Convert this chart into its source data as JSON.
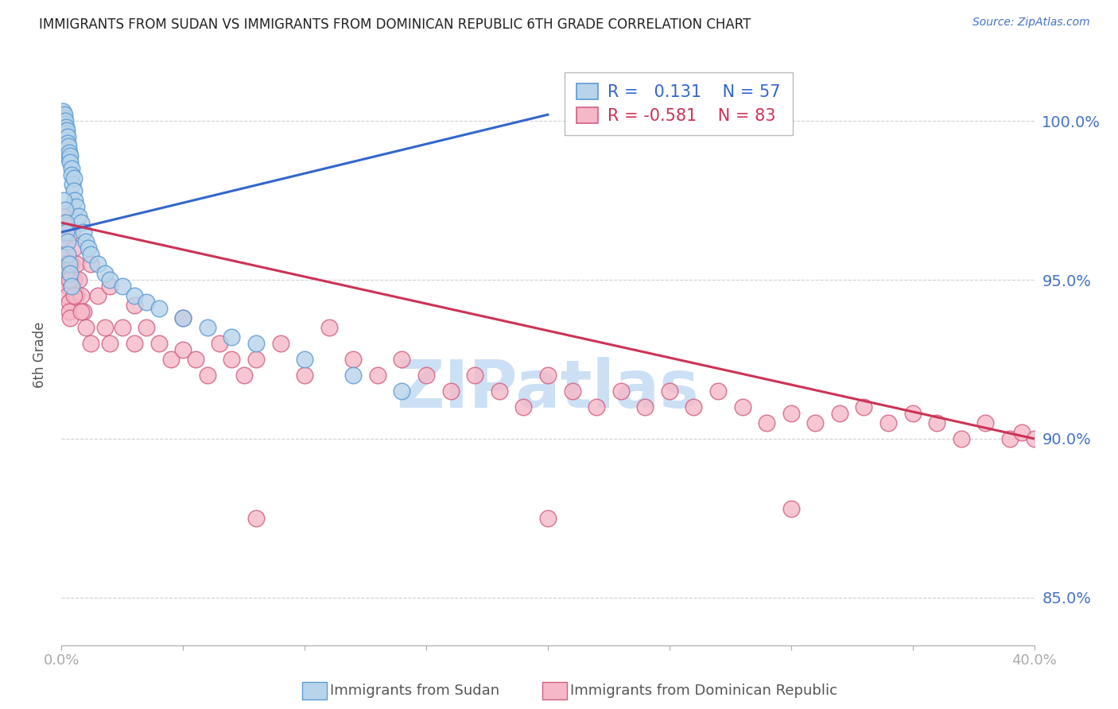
{
  "title": "IMMIGRANTS FROM SUDAN VS IMMIGRANTS FROM DOMINICAN REPUBLIC 6TH GRADE CORRELATION CHART",
  "source_text": "Source: ZipAtlas.com",
  "ylabel": "6th Grade",
  "xmin": 0.0,
  "xmax": 40.0,
  "ymin": 83.5,
  "ymax": 101.8,
  "yticks": [
    85.0,
    90.0,
    95.0,
    100.0
  ],
  "ytick_labels": [
    "85.0%",
    "90.0%",
    "95.0%",
    "100.0%"
  ],
  "legend_R_blue": "0.131",
  "legend_N_blue": "57",
  "legend_R_pink": "-0.581",
  "legend_N_pink": "83",
  "blue_fill": "#b8d4ea",
  "blue_edge": "#5b9bd5",
  "pink_fill": "#f5b8c8",
  "pink_edge": "#d06080",
  "blue_line": "#3366cc",
  "pink_line": "#cc3355",
  "bg": "#ffffff",
  "grid_color": "#cccccc",
  "title_color": "#222222",
  "ylabel_color": "#555555",
  "right_tick_color": "#4472c4",
  "watermark_color": "#cce0f5",
  "source_color": "#4472c4",
  "bottom_label_color": "#555555",
  "sudan_x": [
    0.05,
    0.05,
    0.08,
    0.1,
    0.1,
    0.12,
    0.12,
    0.15,
    0.15,
    0.18,
    0.18,
    0.2,
    0.2,
    0.22,
    0.25,
    0.25,
    0.28,
    0.3,
    0.3,
    0.35,
    0.35,
    0.4,
    0.4,
    0.45,
    0.5,
    0.5,
    0.55,
    0.6,
    0.7,
    0.8,
    0.9,
    1.0,
    1.1,
    1.2,
    1.5,
    1.8,
    2.0,
    2.5,
    3.0,
    3.5,
    4.0,
    5.0,
    6.0,
    7.0,
    8.0,
    10.0,
    12.0,
    14.0,
    0.1,
    0.15,
    0.2,
    0.2,
    0.25,
    0.25,
    0.3,
    0.35,
    0.4
  ],
  "sudan_y": [
    100.2,
    100.3,
    100.1,
    100.0,
    99.8,
    100.2,
    99.9,
    100.0,
    99.7,
    99.8,
    99.5,
    99.6,
    99.4,
    99.7,
    99.5,
    99.3,
    99.2,
    99.0,
    98.8,
    98.9,
    98.7,
    98.5,
    98.3,
    98.0,
    98.2,
    97.8,
    97.5,
    97.3,
    97.0,
    96.8,
    96.5,
    96.2,
    96.0,
    95.8,
    95.5,
    95.2,
    95.0,
    94.8,
    94.5,
    94.3,
    94.1,
    93.8,
    93.5,
    93.2,
    93.0,
    92.5,
    92.0,
    91.5,
    97.5,
    97.2,
    96.8,
    96.5,
    96.2,
    95.8,
    95.5,
    95.2,
    94.8
  ],
  "dr_x": [
    0.05,
    0.08,
    0.1,
    0.12,
    0.15,
    0.15,
    0.18,
    0.2,
    0.2,
    0.25,
    0.25,
    0.3,
    0.3,
    0.35,
    0.4,
    0.4,
    0.5,
    0.5,
    0.6,
    0.6,
    0.7,
    0.8,
    0.9,
    1.0,
    1.2,
    1.5,
    1.8,
    2.0,
    2.5,
    3.0,
    3.5,
    4.0,
    4.5,
    5.0,
    5.5,
    6.0,
    6.5,
    7.0,
    7.5,
    8.0,
    9.0,
    10.0,
    11.0,
    12.0,
    13.0,
    14.0,
    15.0,
    16.0,
    17.0,
    18.0,
    19.0,
    20.0,
    21.0,
    22.0,
    23.0,
    24.0,
    25.0,
    26.0,
    27.0,
    28.0,
    29.0,
    30.0,
    31.0,
    32.0,
    33.0,
    34.0,
    35.0,
    36.0,
    37.0,
    38.0,
    39.0,
    39.5,
    40.0,
    0.3,
    0.5,
    0.8,
    1.2,
    2.0,
    3.0,
    5.0,
    8.0,
    20.0,
    30.0
  ],
  "dr_y": [
    97.0,
    96.8,
    96.5,
    96.3,
    96.0,
    95.8,
    95.5,
    95.3,
    95.0,
    94.8,
    94.5,
    94.3,
    94.0,
    93.8,
    96.5,
    95.5,
    96.0,
    95.0,
    95.5,
    94.5,
    95.0,
    94.5,
    94.0,
    93.5,
    93.0,
    94.5,
    93.5,
    93.0,
    93.5,
    93.0,
    93.5,
    93.0,
    92.5,
    92.8,
    92.5,
    92.0,
    93.0,
    92.5,
    92.0,
    92.5,
    93.0,
    92.0,
    93.5,
    92.5,
    92.0,
    92.5,
    92.0,
    91.5,
    92.0,
    91.5,
    91.0,
    92.0,
    91.5,
    91.0,
    91.5,
    91.0,
    91.5,
    91.0,
    91.5,
    91.0,
    90.5,
    90.8,
    90.5,
    90.8,
    91.0,
    90.5,
    90.8,
    90.5,
    90.0,
    90.5,
    90.0,
    90.2,
    90.0,
    95.0,
    94.5,
    94.0,
    95.5,
    94.8,
    94.2,
    93.8,
    87.5,
    87.5,
    87.8
  ],
  "blue_line_x0": 0.0,
  "blue_line_y0": 96.5,
  "blue_line_x1": 20.0,
  "blue_line_y1": 100.2,
  "pink_line_x0": 0.0,
  "pink_line_y0": 96.8,
  "pink_line_x1": 40.0,
  "pink_line_y1": 90.0
}
